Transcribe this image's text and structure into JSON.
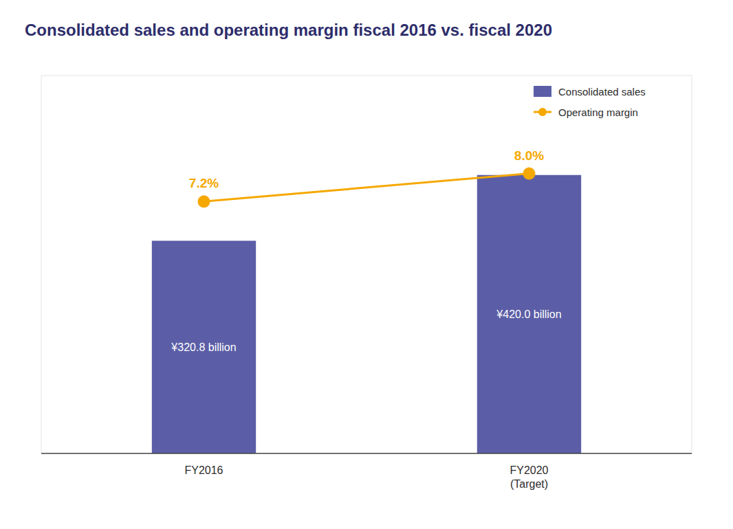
{
  "chart_data": {
    "type": "bar",
    "title": "Consolidated sales and operating margin fiscal 2016 vs. fiscal 2020",
    "categories": [
      "FY2016",
      "FY2020\n(Target)"
    ],
    "series": [
      {
        "name": "Consolidated sales",
        "type": "bar",
        "color": "#5b5ea6",
        "values": [
          320.8,
          420.0
        ],
        "value_labels": [
          "¥320.8 billion",
          "¥420.0 billion"
        ]
      },
      {
        "name": "Operating margin",
        "type": "line",
        "axis": "y2",
        "color": "#f5a800",
        "marker": "circle",
        "line_style": "solid",
        "values": [
          7.2,
          8.0
        ],
        "value_labels": [
          "7.2%",
          "8.0%"
        ]
      }
    ],
    "ylim": [
      0,
      570
    ],
    "y2lim": [
      0,
      10.8
    ],
    "grid": false,
    "legend": "upper right",
    "data_labels": true,
    "tick_labels": "x"
  }
}
